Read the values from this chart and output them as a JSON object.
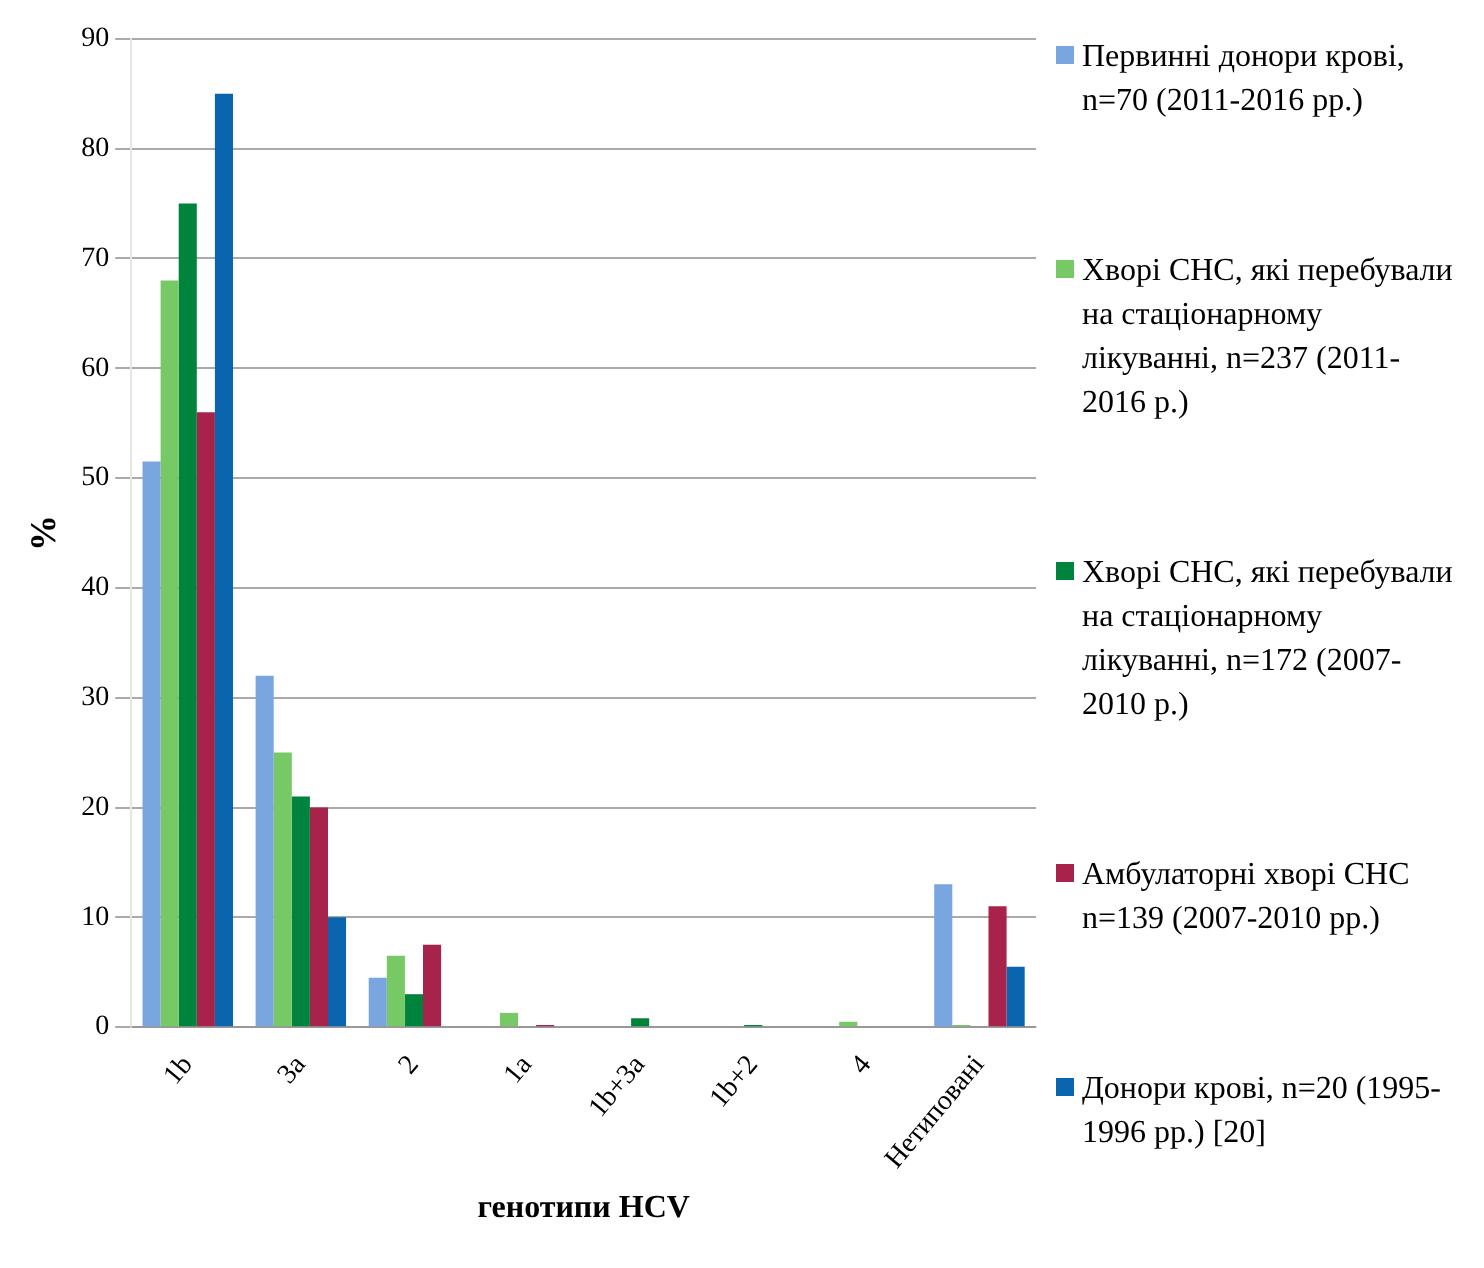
{
  "chart_data": {
    "type": "bar",
    "xlabel": "генотипи HCV",
    "ylabel": "%",
    "categories": [
      "1b",
      "3a",
      "2",
      "1a",
      "1b+3a",
      "1b+2",
      "4",
      "Нетиповані"
    ],
    "series": [
      {
        "name": "Первинні донори крові, n=70 (2011-2016 рр.)",
        "color": "#7aa6e0",
        "values": [
          51.5,
          32,
          4.5,
          null,
          null,
          null,
          null,
          13
        ]
      },
      {
        "name": "Хворі СНС, які перебували на стаціонарному лікуванні, n=237 (2011-2016 р.)",
        "color": "#77c966",
        "values": [
          68,
          25,
          6.5,
          1.3,
          null,
          null,
          0.5,
          0.2
        ]
      },
      {
        "name": "Хворі СНС, які перебували на стаціонарному лікуванні, n=172 (2007-2010 р.)",
        "color": "#00843d",
        "values": [
          75,
          21,
          3,
          null,
          0.8,
          0.2,
          null,
          null
        ]
      },
      {
        "name": "Амбулаторні хворі СНС n=139 (2007-2010 рр.)",
        "color": "#a8234b",
        "values": [
          56,
          20,
          7.5,
          0.2,
          null,
          null,
          null,
          11
        ]
      },
      {
        "name": "Донори крові, n=20 (1995-1996 рр.) [20]",
        "color": "#0b64ae",
        "values": [
          85,
          10,
          null,
          null,
          null,
          null,
          null,
          5.5
        ]
      }
    ],
    "ylim": [
      0,
      90
    ],
    "yticks": [
      0,
      10,
      20,
      30,
      40,
      50,
      60,
      70,
      80,
      90
    ],
    "grid": "y",
    "legend": "right"
  }
}
